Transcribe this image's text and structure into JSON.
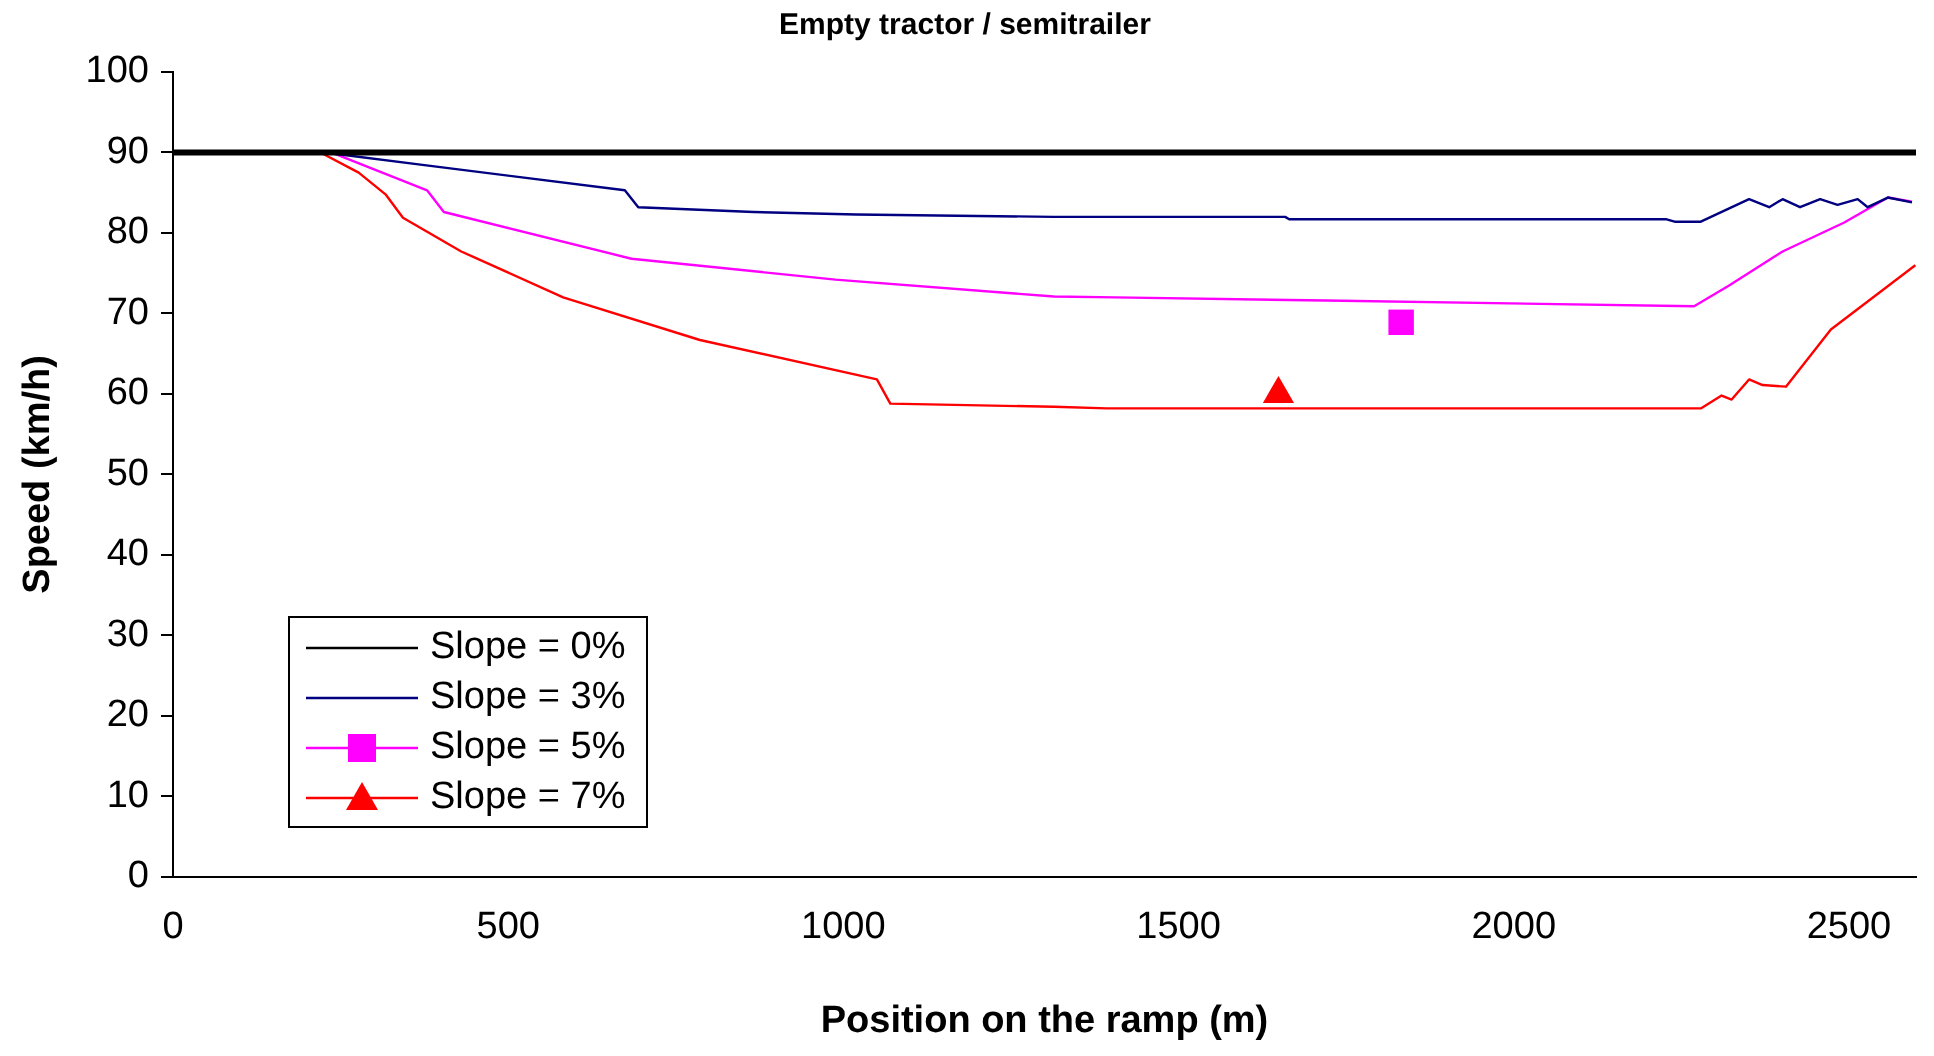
{
  "chart_data": {
    "type": "line",
    "title": "Empty tractor / semitrailer",
    "xlabel": "Position on the ramp (m)",
    "ylabel": "Speed (km/h)",
    "xlim": [
      0,
      2600
    ],
    "xticks": [
      0,
      500,
      1000,
      1500,
      2000,
      2500
    ],
    "ylim": [
      0,
      100
    ],
    "yticks": [
      0,
      10,
      20,
      30,
      40,
      50,
      60,
      70,
      80,
      90,
      100
    ],
    "grid": false,
    "legend": "bottom left",
    "series": [
      {
        "name": "Slope = 0%",
        "color": "#000000",
        "x": [
          0,
          2600
        ],
        "values": [
          90,
          90
        ]
      },
      {
        "name": "Slope = 3%",
        "color": "#000080",
        "x": [
          0,
          226,
          378,
          674,
          694,
          866,
          1019,
          1314,
          1659,
          1665,
          2228,
          2240,
          2279,
          2351,
          2381,
          2401,
          2427,
          2457,
          2483,
          2513,
          2528,
          2558,
          2594
        ],
        "values": [
          90,
          90,
          88.4,
          85.3,
          83.2,
          82.6,
          82.3,
          82,
          82,
          81.7,
          81.7,
          81.4,
          81.4,
          84.2,
          83.2,
          84.2,
          83.2,
          84.2,
          83.5,
          84.2,
          83.2,
          84.4,
          83.8
        ]
      },
      {
        "name": "Slope = 5%",
        "color": "#ff00ff",
        "x": [
          0,
          236,
          379,
          404,
          684,
          988,
          1314,
          1405,
          1720,
          2269,
          2320,
          2401,
          2493,
          2558,
          2594
        ],
        "values": [
          90,
          90,
          85.3,
          82.6,
          76.8,
          74.2,
          72.1,
          72,
          71.6,
          70.9,
          73.4,
          77.7,
          81.3,
          84.4,
          83.9
        ]
      },
      {
        "name": "Slope = 7%",
        "color": "#ff0000",
        "x": [
          0,
          220,
          277,
          317,
          343,
          430,
          582,
          786,
          1050,
          1070,
          1314,
          1393,
          2279,
          2310,
          2325,
          2351,
          2371,
          2406,
          2473,
          2599
        ],
        "values": [
          90,
          90,
          87.5,
          84.8,
          81.9,
          77.7,
          72,
          66.7,
          61.8,
          58.8,
          58.4,
          58.2,
          58.2,
          59.8,
          59.3,
          61.8,
          61.1,
          60.9,
          68,
          76
        ]
      },
      {
        "type": "scatter",
        "color": "#ff00ff",
        "marker": "square",
        "x": [
          1832
        ],
        "values": [
          68.9
        ]
      },
      {
        "type": "scatter",
        "color": "#ff0000",
        "marker": "triangle",
        "x": [
          1649
        ],
        "values": [
          60
        ]
      }
    ]
  }
}
